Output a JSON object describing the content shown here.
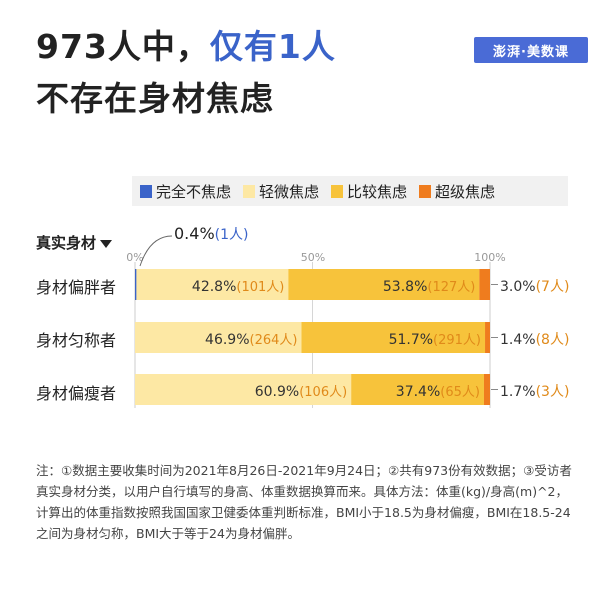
{
  "title": {
    "line1_prefix": "973人中，",
    "line1_highlight": "仅有1人",
    "line2": "不存在身材焦虑"
  },
  "logo": "澎湃·美数课",
  "colors": {
    "none": "#3a63c9",
    "slight": "#fde8a4",
    "relative": "#f7c33b",
    "extreme": "#ef7c1e",
    "highlight": "#3a63c9",
    "count": "#e08a1a"
  },
  "chart_data": {
    "type": "bar",
    "orientation": "horizontal-stacked-100",
    "yaxis_title": "真实身材",
    "legend": [
      "完全不焦虑",
      "轻微焦虑",
      "比较焦虑",
      "超级焦虑"
    ],
    "x_ticks": [
      "0%",
      "50%",
      "100%"
    ],
    "categories": [
      "身材偏胖者",
      "身材匀称者",
      "身材偏瘦者"
    ],
    "series": [
      {
        "name": "完全不焦虑",
        "values": [
          0.4,
          0,
          0
        ],
        "labels": [
          "",
          "",
          ""
        ],
        "counts": [
          "",
          "",
          ""
        ]
      },
      {
        "name": "轻微焦虑",
        "values": [
          42.8,
          46.9,
          60.9
        ],
        "labels": [
          "42.8%",
          "46.9%",
          "60.9%"
        ],
        "counts": [
          "(101人)",
          "(264人)",
          "(106人)"
        ]
      },
      {
        "name": "比较焦虑",
        "values": [
          53.8,
          51.7,
          37.4
        ],
        "labels": [
          "53.8%",
          "51.7%",
          "37.4%"
        ],
        "counts": [
          "(127人)",
          "(291人)",
          "(65人)"
        ]
      },
      {
        "name": "超级焦虑",
        "values": [
          3.0,
          1.4,
          1.7
        ],
        "labels": [
          "3.0%",
          "1.4%",
          "1.7%"
        ],
        "counts": [
          "(7人)",
          "(8人)",
          "(3人)"
        ]
      }
    ],
    "annotation": {
      "value": "0.4%",
      "count": "(1人)"
    }
  },
  "note": "注：①数据主要收集时间为2021年8月26日-2021年9月24日；②共有973份有效数据；③受访者真实身材分类，以用户自行填写的身高、体重数据换算而来。具体方法：体重(kg)/身高(m)^2，计算出的体重指数按照我国国家卫健委体重判断标准，BMI小于18.5为身材偏瘦，BMI在18.5-24之间为身材匀称，BMI大于等于24为身材偏胖。"
}
